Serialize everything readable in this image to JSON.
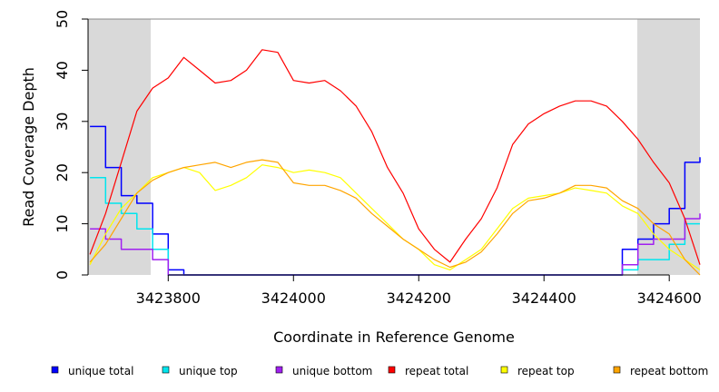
{
  "chart_data": {
    "type": "line",
    "title": "",
    "xlabel": "Coordinate in Reference Genome",
    "ylabel": "Read Coverage Depth",
    "xlim": [
      3423672,
      3424649
    ],
    "ylim": [
      0,
      50
    ],
    "x_ticks": [
      3423800,
      3424000,
      3424200,
      3424400,
      3424600
    ],
    "x_tick_labels": [
      "3423800",
      "3424000",
      "3424200",
      "3424400",
      "3424600"
    ],
    "y_ticks": [
      0,
      10,
      20,
      30,
      40,
      50
    ],
    "y_tick_labels": [
      "0",
      "10",
      "20",
      "30",
      "40",
      "50"
    ],
    "shaded_regions": [
      [
        3423672,
        3423772
      ],
      [
        3424549,
        3424649
      ]
    ],
    "legend_position": "bottom",
    "x": [
      3423675,
      3423700,
      3423725,
      3423750,
      3423775,
      3423800,
      3423825,
      3423850,
      3423875,
      3423900,
      3423925,
      3423950,
      3423975,
      3424000,
      3424025,
      3424050,
      3424075,
      3424100,
      3424125,
      3424150,
      3424175,
      3424200,
      3424225,
      3424250,
      3424275,
      3424300,
      3424325,
      3424350,
      3424375,
      3424400,
      3424425,
      3424450,
      3424475,
      3424500,
      3424525,
      3424550,
      3424575,
      3424600,
      3424625,
      3424650
    ],
    "series": [
      {
        "name": "unique total",
        "color": "#0000ff",
        "step": true,
        "values": [
          29,
          21,
          15.5,
          14,
          8,
          1,
          0,
          0,
          0,
          0,
          0,
          0,
          0,
          0,
          0,
          0,
          0,
          0,
          0,
          0,
          0,
          0,
          0,
          0,
          0,
          0,
          0,
          0,
          0,
          0,
          0,
          0,
          0,
          0,
          5,
          7,
          10,
          13,
          22,
          23
        ]
      },
      {
        "name": "unique top",
        "color": "#00e5ee",
        "step": true,
        "values": [
          19,
          14,
          12,
          9,
          5,
          0,
          0,
          0,
          0,
          0,
          0,
          0,
          0,
          0,
          0,
          0,
          0,
          0,
          0,
          0,
          0,
          0,
          0,
          0,
          0,
          0,
          0,
          0,
          0,
          0,
          0,
          0,
          0,
          0,
          1,
          3,
          3,
          6,
          10,
          10
        ]
      },
      {
        "name": "unique bottom",
        "color": "#a020f0",
        "step": true,
        "values": [
          9,
          7,
          5,
          5,
          3,
          0,
          0,
          0,
          0,
          0,
          0,
          0,
          0,
          0,
          0,
          0,
          0,
          0,
          0,
          0,
          0,
          0,
          0,
          0,
          0,
          0,
          0,
          0,
          0,
          0,
          0,
          0,
          0,
          0,
          2,
          6,
          7,
          7,
          11,
          12
        ]
      },
      {
        "name": "repeat total",
        "color": "#ff0000",
        "step": false,
        "values": [
          4,
          12,
          22,
          32,
          36.5,
          38.5,
          42.5,
          40,
          37.5,
          38,
          40,
          44,
          43.5,
          38,
          37.5,
          38,
          36,
          33,
          28,
          21,
          16,
          9,
          5,
          2.5,
          7,
          11,
          17,
          25.5,
          29.5,
          31.5,
          33,
          34,
          34,
          33,
          30,
          26.5,
          22,
          18,
          11,
          2
        ]
      },
      {
        "name": "repeat top",
        "color": "#ffff00",
        "step": false,
        "values": [
          2,
          8,
          13,
          16,
          19,
          20,
          21,
          20,
          16.5,
          17.5,
          19,
          21.5,
          21,
          20,
          20.5,
          20,
          19,
          16,
          13,
          10,
          7,
          5,
          2,
          1,
          3,
          5,
          9,
          13,
          15,
          15.5,
          16,
          17,
          16.5,
          16,
          13.5,
          12,
          8,
          5,
          3,
          1
        ]
      },
      {
        "name": "repeat bottom",
        "color": "#ffa500",
        "step": false,
        "values": [
          2.5,
          6,
          11,
          16,
          18.5,
          20,
          21,
          21.5,
          22,
          21,
          22,
          22.5,
          22,
          18,
          17.5,
          17.5,
          16.5,
          15,
          12,
          9.5,
          7,
          5,
          3,
          1.5,
          2.5,
          4.5,
          8,
          12,
          14.5,
          15,
          16,
          17.5,
          17.5,
          17,
          14.5,
          13,
          10,
          8,
          3,
          0
        ]
      }
    ]
  }
}
